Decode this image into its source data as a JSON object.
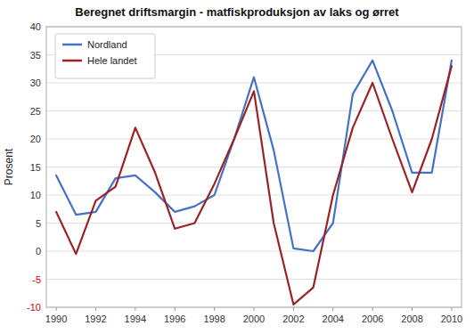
{
  "chart_data": {
    "type": "line",
    "title": "Beregnet driftsmargin - matfiskproduksjon av laks og ørret",
    "y_label": "Prosent",
    "x": [
      1990,
      1991,
      1992,
      1993,
      1994,
      1995,
      1996,
      1997,
      1998,
      1999,
      2000,
      2001,
      2002,
      2003,
      2004,
      2005,
      2006,
      2007,
      2008,
      2009,
      2010
    ],
    "series": [
      {
        "name": "Nordland",
        "color": "#4472C4",
        "values": [
          13.5,
          6.5,
          7.0,
          13.0,
          13.5,
          10.5,
          7.0,
          8.0,
          10.0,
          20.0,
          31.0,
          18.0,
          0.5,
          0.0,
          5.0,
          28.0,
          34.0,
          25.0,
          14.0,
          14.0,
          34.0
        ]
      },
      {
        "name": "Hele landet",
        "color": "#9B2323",
        "values": [
          7.0,
          -0.5,
          9.0,
          11.5,
          22.0,
          14.0,
          4.0,
          5.0,
          12.0,
          20.0,
          28.5,
          5.0,
          -9.5,
          -6.5,
          10.0,
          22.0,
          30.0,
          20.0,
          10.5,
          20.0,
          33.0
        ]
      }
    ],
    "xlim": [
      1989.5,
      2010.5
    ],
    "xticks": [
      1990,
      1992,
      1994,
      1996,
      1998,
      2000,
      2002,
      2004,
      2006,
      2008,
      2010
    ],
    "ylim": [
      -10,
      40
    ],
    "yticks": [
      -10,
      -5,
      0,
      5,
      10,
      15,
      20,
      25,
      30,
      35,
      40
    ],
    "grid": true,
    "legend": "upper-left"
  }
}
